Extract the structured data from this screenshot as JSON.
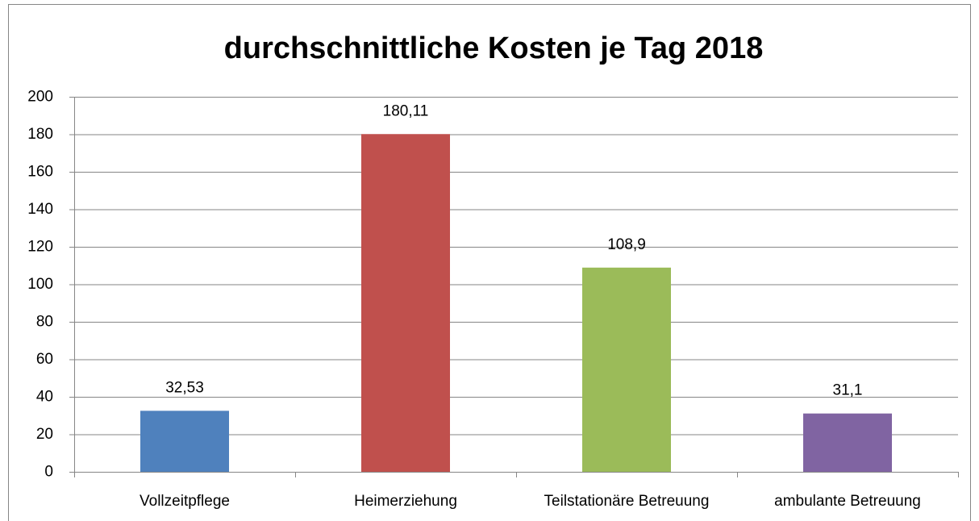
{
  "chart_data": {
    "type": "bar",
    "title": "durchschnittliche Kosten je Tag 2018",
    "categories": [
      "Vollzeitpflege",
      "Heimerziehung",
      "Teilstationäre Betreuung",
      "ambulante Betreuung"
    ],
    "values": [
      32.53,
      180.11,
      108.9,
      31.1
    ],
    "value_labels": [
      "32,53",
      "180,11",
      "108,9",
      "31,1"
    ],
    "colors": [
      "#4f81bd",
      "#c0504d",
      "#9bbb59",
      "#8064a2"
    ],
    "ylim": [
      0,
      200
    ],
    "yticks": [
      0,
      20,
      40,
      60,
      80,
      100,
      120,
      140,
      160,
      180,
      200
    ],
    "grid": true
  }
}
